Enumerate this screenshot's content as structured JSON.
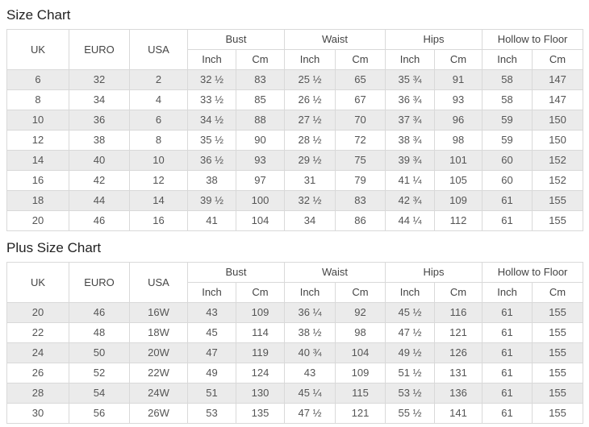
{
  "page": {
    "size_chart_title": "Size Chart",
    "plus_size_chart_title": "Plus Size Chart"
  },
  "table_headers": {
    "uk": "UK",
    "euro": "EURO",
    "usa": "USA",
    "bust": "Bust",
    "waist": "Waist",
    "hips": "Hips",
    "hollow_to_floor": "Hollow to Floor",
    "inch": "Inch",
    "cm": "Cm"
  },
  "colors": {
    "border": "#d9d9d9",
    "row_shade": "#ebebeb",
    "cell_text": "#555555",
    "header_text": "#444444",
    "title_text": "#222222"
  },
  "size_chart": {
    "rows": [
      [
        "6",
        "32",
        "2",
        "32 ½",
        "83",
        "25 ½",
        "65",
        "35 ¾",
        "91",
        "58",
        "147"
      ],
      [
        "8",
        "34",
        "4",
        "33 ½",
        "85",
        "26 ½",
        "67",
        "36 ¾",
        "93",
        "58",
        "147"
      ],
      [
        "10",
        "36",
        "6",
        "34 ½",
        "88",
        "27 ½",
        "70",
        "37 ¾",
        "96",
        "59",
        "150"
      ],
      [
        "12",
        "38",
        "8",
        "35 ½",
        "90",
        "28 ½",
        "72",
        "38 ¾",
        "98",
        "59",
        "150"
      ],
      [
        "14",
        "40",
        "10",
        "36 ½",
        "93",
        "29 ½",
        "75",
        "39 ¾",
        "101",
        "60",
        "152"
      ],
      [
        "16",
        "42",
        "12",
        "38",
        "97",
        "31",
        "79",
        "41 ¼",
        "105",
        "60",
        "152"
      ],
      [
        "18",
        "44",
        "14",
        "39 ½",
        "100",
        "32 ½",
        "83",
        "42 ¾",
        "109",
        "61",
        "155"
      ],
      [
        "20",
        "46",
        "16",
        "41",
        "104",
        "34",
        "86",
        "44 ¼",
        "112",
        "61",
        "155"
      ]
    ]
  },
  "plus_size_chart": {
    "rows": [
      [
        "20",
        "46",
        "16W",
        "43",
        "109",
        "36 ¼",
        "92",
        "45 ½",
        "116",
        "61",
        "155"
      ],
      [
        "22",
        "48",
        "18W",
        "45",
        "114",
        "38 ½",
        "98",
        "47 ½",
        "121",
        "61",
        "155"
      ],
      [
        "24",
        "50",
        "20W",
        "47",
        "119",
        "40 ¾",
        "104",
        "49 ½",
        "126",
        "61",
        "155"
      ],
      [
        "26",
        "52",
        "22W",
        "49",
        "124",
        "43",
        "109",
        "51 ½",
        "131",
        "61",
        "155"
      ],
      [
        "28",
        "54",
        "24W",
        "51",
        "130",
        "45 ¼",
        "115",
        "53 ½",
        "136",
        "61",
        "155"
      ],
      [
        "30",
        "56",
        "26W",
        "53",
        "135",
        "47 ½",
        "121",
        "55 ½",
        "141",
        "61",
        "155"
      ]
    ]
  }
}
